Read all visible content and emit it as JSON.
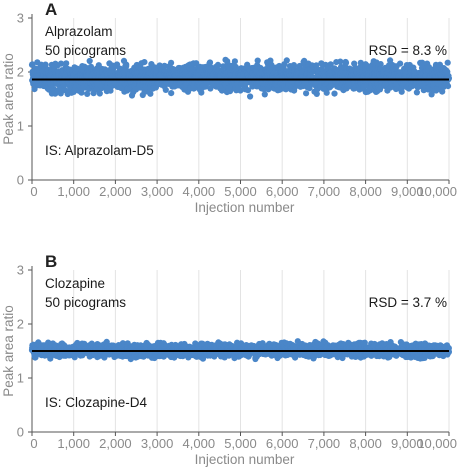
{
  "chart_data": [
    {
      "type": "scatter",
      "panel": "A",
      "analyte": "Alprazolam",
      "amount": "50 picograms",
      "rsd_label": "RSD = 8.3 %",
      "internal_standard": "IS: Alprazolam-D5",
      "xlabel": "Injection number",
      "ylabel": "Peak area ratio",
      "xlim": [
        0,
        10000
      ],
      "ylim": [
        0,
        3
      ],
      "x_ticks": [
        0,
        1000,
        2000,
        3000,
        4000,
        5000,
        6000,
        7000,
        8000,
        9000,
        10000
      ],
      "x_tick_labels": [
        "0",
        "1,000",
        "2,000",
        "3,000",
        "4,000",
        "5,000",
        "6,000",
        "7,000",
        "8,000",
        "9,000",
        "10,000"
      ],
      "y_ticks": [
        0,
        1,
        2,
        3
      ],
      "y_tick_labels": [
        "0",
        "1",
        "2",
        "3"
      ],
      "grid": "vertical",
      "mean": 1.86,
      "band_min": 1.55,
      "band_max": 2.25,
      "n_points": 10000,
      "point_color": "#4a86c8",
      "mean_line_color": "#000000"
    },
    {
      "type": "scatter",
      "panel": "B",
      "analyte": "Clozapine",
      "amount": "50 picograms",
      "rsd_label": "RSD = 3.7 %",
      "internal_standard": "IS: Clozapine-D4",
      "xlabel": "Injection number",
      "ylabel": "Peak area ratio",
      "xlim": [
        0,
        10000
      ],
      "ylim": [
        0,
        3
      ],
      "x_ticks": [
        0,
        1000,
        2000,
        3000,
        4000,
        5000,
        6000,
        7000,
        8000,
        9000,
        10000
      ],
      "x_tick_labels": [
        "0",
        "1,000",
        "2,000",
        "3,000",
        "4,000",
        "5,000",
        "6,000",
        "7,000",
        "8,000",
        "9,000",
        "10,000"
      ],
      "y_ticks": [
        0,
        1,
        2,
        3
      ],
      "y_tick_labels": [
        "0",
        "1",
        "2",
        "3"
      ],
      "grid": "vertical",
      "mean": 1.5,
      "band_min": 1.35,
      "band_max": 1.68,
      "n_points": 10000,
      "point_color": "#4a86c8",
      "mean_line_color": "#000000"
    }
  ]
}
